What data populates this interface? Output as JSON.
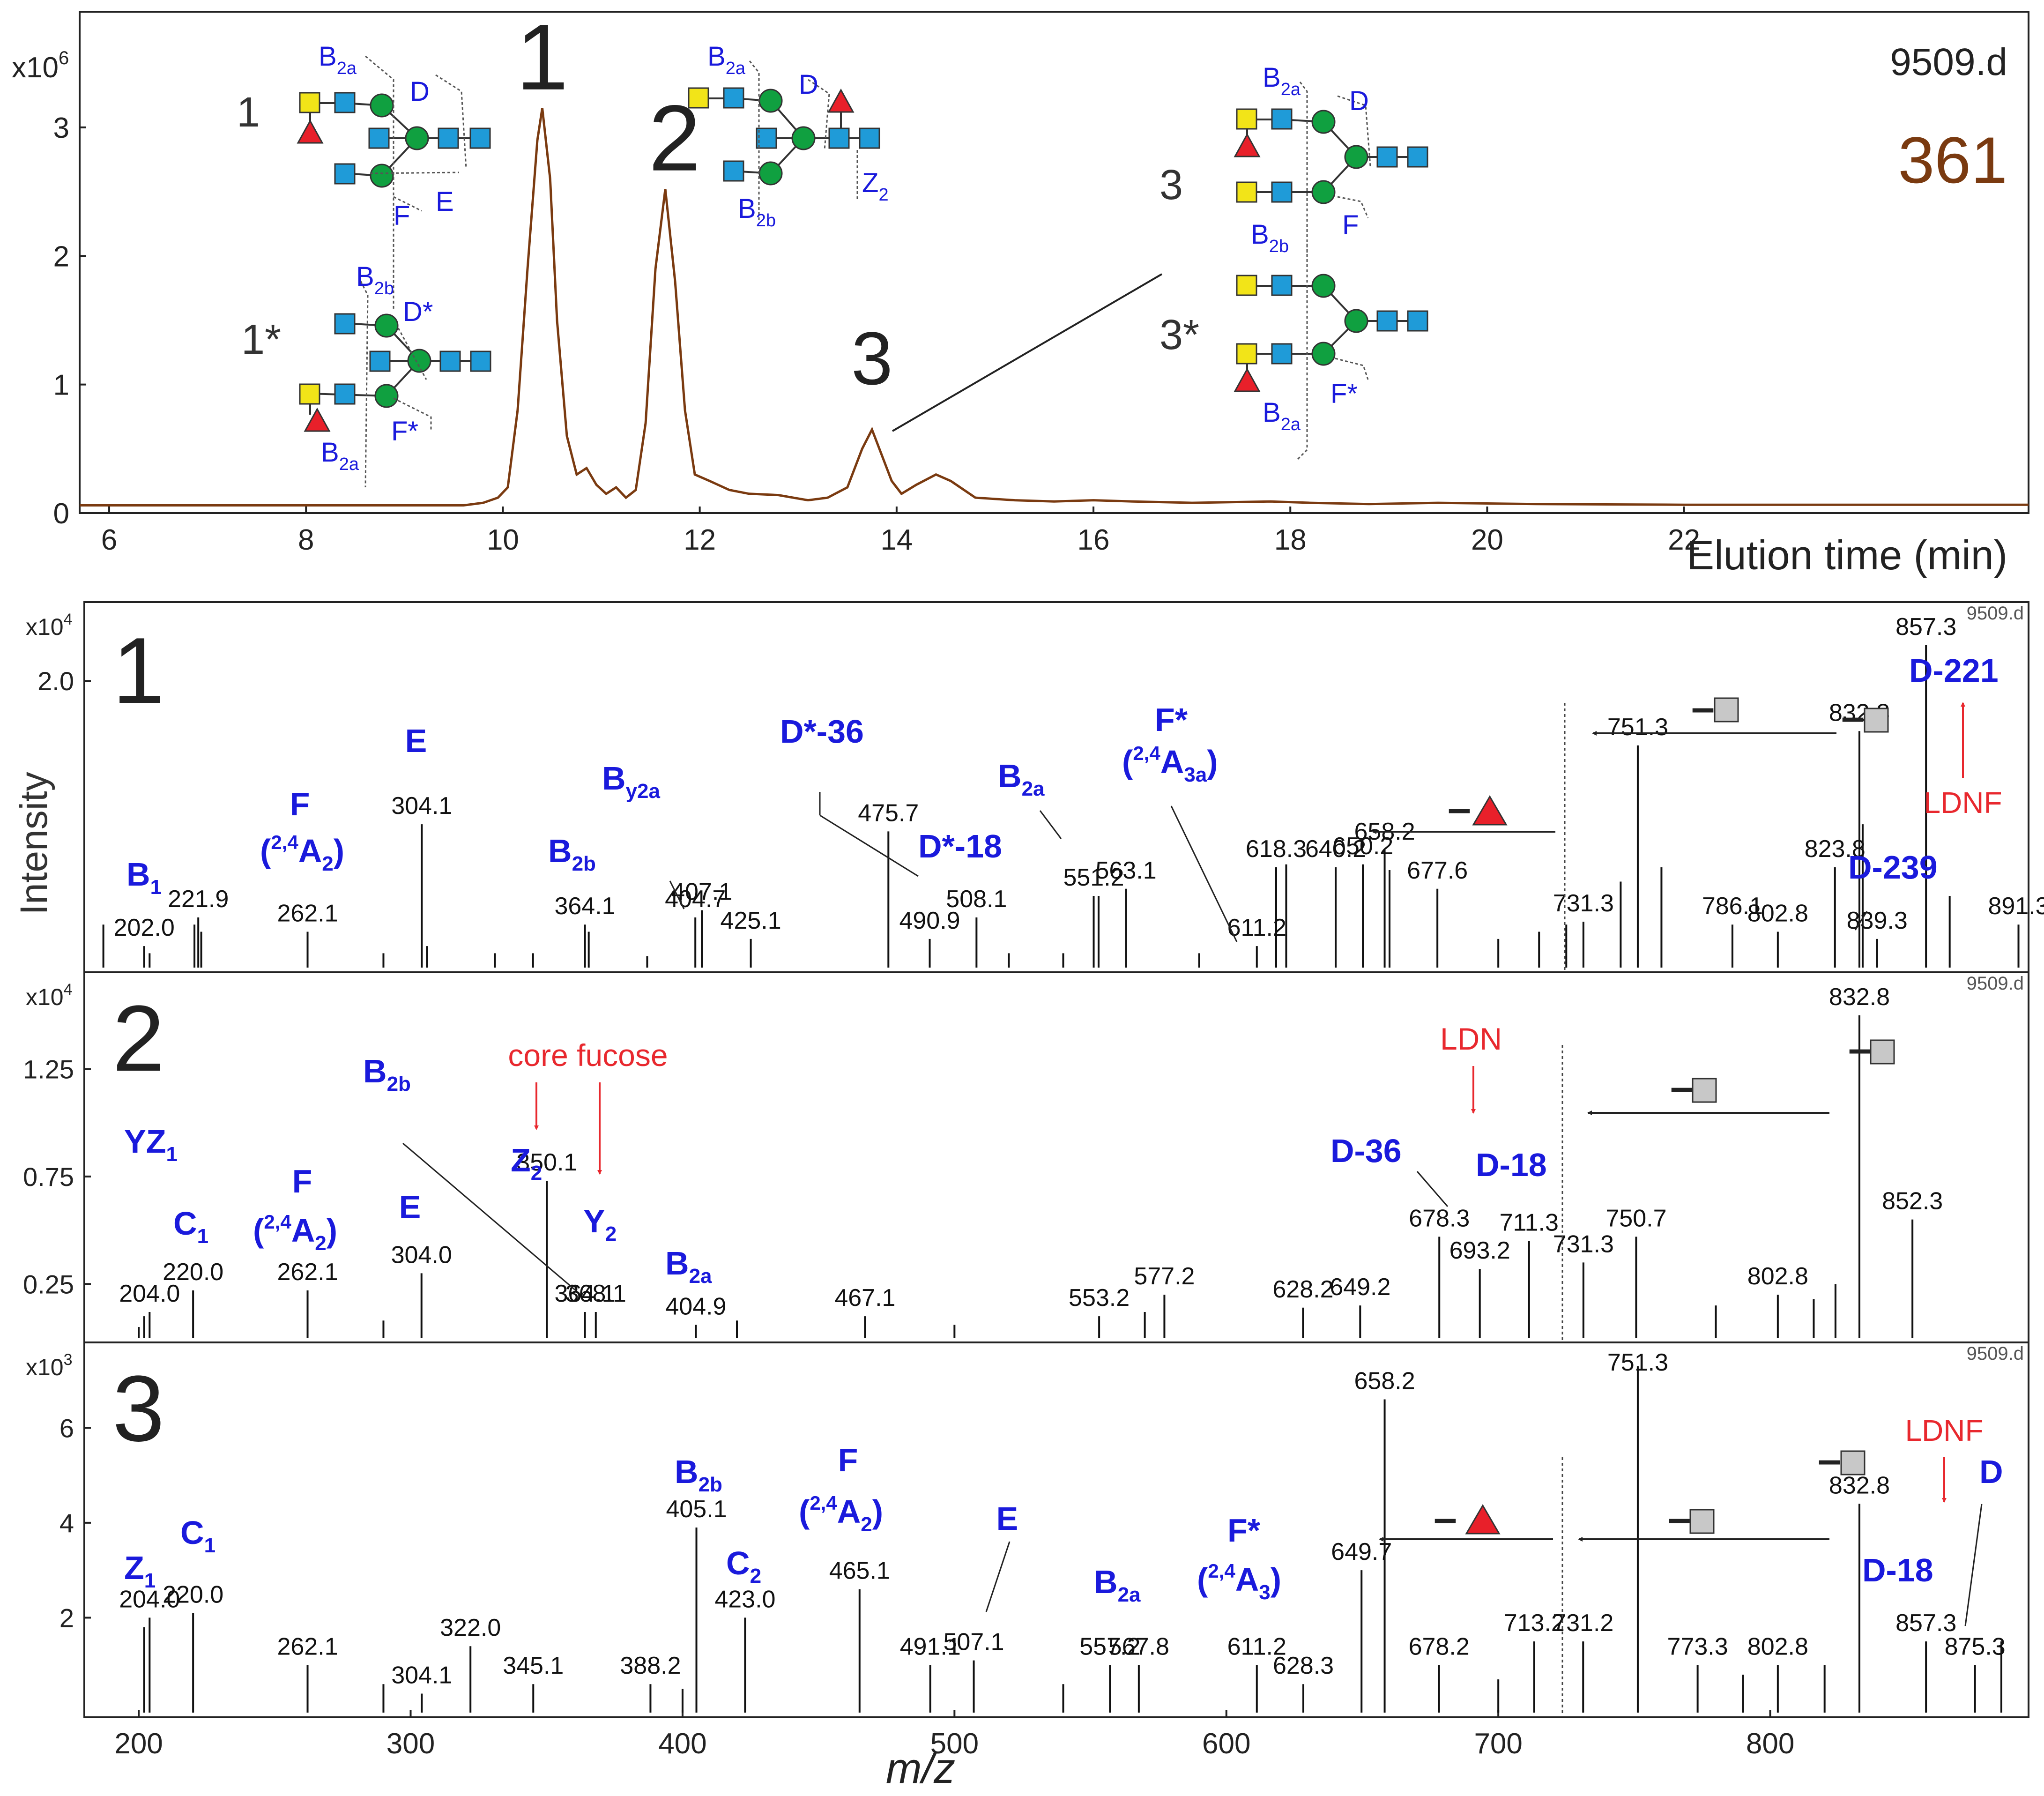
{
  "chart_data": [
    {
      "type": "line",
      "panel": "chromatogram",
      "file_label": "9509.d",
      "mass_label": "361",
      "xlabel": "Elution time (min)",
      "ylabel": "",
      "y_exponent": "x10",
      "y_exponent_power": "6",
      "xlim": [
        5.7,
        25.5
      ],
      "ylim": [
        0,
        3.9
      ],
      "x_ticks": [
        6,
        8,
        10,
        12,
        14,
        16,
        18,
        20,
        22
      ],
      "y_ticks": [
        0,
        1,
        2,
        3
      ],
      "peaks": [
        {
          "label": "1",
          "time": 10.4,
          "height": 3.15
        },
        {
          "label": "2",
          "time": 11.65,
          "height": 2.52
        },
        {
          "label": "3",
          "time": 13.75,
          "height": 0.65
        }
      ],
      "trace": [
        [
          5.7,
          0.06
        ],
        [
          9.6,
          0.06
        ],
        [
          9.8,
          0.08
        ],
        [
          9.95,
          0.12
        ],
        [
          10.05,
          0.2
        ],
        [
          10.15,
          0.8
        ],
        [
          10.25,
          1.9
        ],
        [
          10.35,
          2.9
        ],
        [
          10.4,
          3.15
        ],
        [
          10.48,
          2.6
        ],
        [
          10.55,
          1.5
        ],
        [
          10.65,
          0.6
        ],
        [
          10.75,
          0.3
        ],
        [
          10.85,
          0.35
        ],
        [
          10.95,
          0.22
        ],
        [
          11.05,
          0.15
        ],
        [
          11.15,
          0.2
        ],
        [
          11.25,
          0.12
        ],
        [
          11.35,
          0.18
        ],
        [
          11.45,
          0.7
        ],
        [
          11.55,
          1.9
        ],
        [
          11.65,
          2.52
        ],
        [
          11.75,
          1.8
        ],
        [
          11.85,
          0.8
        ],
        [
          11.95,
          0.3
        ],
        [
          12.1,
          0.25
        ],
        [
          12.3,
          0.18
        ],
        [
          12.5,
          0.15
        ],
        [
          12.8,
          0.14
        ],
        [
          13.1,
          0.1
        ],
        [
          13.3,
          0.12
        ],
        [
          13.5,
          0.2
        ],
        [
          13.65,
          0.5
        ],
        [
          13.75,
          0.65
        ],
        [
          13.85,
          0.45
        ],
        [
          13.95,
          0.25
        ],
        [
          14.05,
          0.15
        ],
        [
          14.2,
          0.22
        ],
        [
          14.4,
          0.3
        ],
        [
          14.55,
          0.25
        ],
        [
          14.8,
          0.12
        ],
        [
          15.2,
          0.1
        ],
        [
          15.6,
          0.09
        ],
        [
          16.0,
          0.1
        ],
        [
          16.4,
          0.09
        ],
        [
          17.0,
          0.08
        ],
        [
          17.8,
          0.09
        ],
        [
          18.2,
          0.08
        ],
        [
          18.8,
          0.07
        ],
        [
          19.5,
          0.08
        ],
        [
          20.5,
          0.07
        ],
        [
          22.0,
          0.065
        ],
        [
          25.5,
          0.065
        ]
      ],
      "annotations": {
        "peak_numbers": [
          "1",
          "2",
          "3"
        ],
        "structure_labels": [
          "1",
          "1*",
          "2",
          "3",
          "3*"
        ],
        "fragment_labels": [
          "B",
          "2a",
          "D",
          "F",
          "E",
          "2b",
          "D*",
          "F*",
          "Z",
          "2",
          "F*"
        ]
      }
    },
    {
      "type": "bar",
      "panel": "MS/MS spectrum 1",
      "panel_number": "1",
      "file_label": "9509.d",
      "y_exponent": "x10",
      "y_exponent_power": "4",
      "ylabel": "Intensity",
      "xlim": [
        180,
        895
      ],
      "ylim": [
        0,
        2.55
      ],
      "y_ticks": [
        "2.0"
      ],
      "x": [
        187,
        202.0,
        204,
        220.5,
        221.9,
        223,
        262.1,
        290,
        304.1,
        306,
        331,
        345,
        364.1,
        365.5,
        387,
        404.7,
        407.1,
        425.1,
        475.7,
        490.9,
        508.1,
        520,
        540,
        551.2,
        553,
        563.1,
        590,
        611.2,
        618.3,
        622,
        640.2,
        650.2,
        658.2,
        660,
        677.6,
        700,
        715,
        725,
        731.3,
        745,
        751.3,
        760,
        786.1,
        802.8,
        823.8,
        832.8,
        834,
        839.3,
        857.3,
        866,
        891.3
      ],
      "values": [
        0.3,
        0.15,
        0.1,
        0.3,
        0.35,
        0.25,
        0.25,
        0.1,
        1.0,
        0.15,
        0.1,
        0.1,
        0.3,
        0.25,
        0.08,
        0.35,
        0.4,
        0.2,
        0.95,
        0.2,
        0.35,
        0.1,
        0.1,
        0.5,
        0.5,
        0.55,
        0.1,
        0.15,
        0.7,
        0.72,
        0.7,
        0.72,
        0.82,
        0.68,
        0.55,
        0.2,
        0.25,
        0.3,
        0.32,
        0.6,
        1.55,
        0.7,
        0.3,
        0.25,
        0.7,
        1.65,
        1.0,
        0.2,
        2.25,
        0.5,
        0.3
      ],
      "peak_labels": [
        "221.9",
        "202.0",
        "262.1",
        "304.1",
        "364.1",
        "404.7",
        "407.1",
        "425.1",
        "475.7",
        "490.9",
        "508.1",
        "551.2",
        "563.1",
        "611.2",
        "618.3",
        "640.2",
        "650.2",
        "658.2",
        "677.6",
        "731.3",
        "751.3",
        "786.1",
        "802.8",
        "823.8",
        "832.8",
        "839.3",
        "857.3",
        "891.3"
      ],
      "annotations": {
        "ions": [
          "B",
          "1",
          "F",
          "(",
          "2,4",
          "A",
          "2",
          ")",
          "E",
          "B",
          "y2a",
          "B",
          "2b",
          "D*-36",
          "D*-18",
          "B",
          "2a",
          "F*",
          "(",
          "2,4",
          "A",
          "3a",
          ")",
          "D-221",
          "D-239",
          "LDNF"
        ],
        "losses": [
          "–",
          "–",
          "–"
        ]
      }
    },
    {
      "type": "bar",
      "panel": "MS/MS spectrum 2",
      "panel_number": "2",
      "file_label": "9509.d",
      "y_exponent": "x10",
      "y_exponent_power": "4",
      "xlim": [
        180,
        895
      ],
      "ylim": [
        0,
        1.7
      ],
      "y_ticks": [
        "0.25",
        "0.75",
        "1.25"
      ],
      "x": [
        200,
        202,
        204.0,
        220.0,
        262.1,
        290,
        304.0,
        350.1,
        364.1,
        368.1,
        404.9,
        420,
        467.1,
        500,
        553.2,
        570,
        577.2,
        628.2,
        649.2,
        678.3,
        693.2,
        711.3,
        731.3,
        750.7,
        780,
        802.8,
        816,
        824,
        832.8,
        852.3
      ],
      "values": [
        0.05,
        0.1,
        0.12,
        0.22,
        0.22,
        0.08,
        0.3,
        0.73,
        0.12,
        0.12,
        0.06,
        0.08,
        0.1,
        0.06,
        0.1,
        0.12,
        0.2,
        0.14,
        0.15,
        0.47,
        0.32,
        0.45,
        0.35,
        0.47,
        0.15,
        0.2,
        0.18,
        0.25,
        1.5,
        0.55
      ],
      "peak_labels": [
        "204.0",
        "220.0",
        "262.1",
        "304.0",
        "350.1",
        "364.1",
        "368.1",
        "404.9",
        "467.1",
        "553.2",
        "577.2",
        "628.2",
        "649.2",
        "678.3",
        "693.2",
        "711.3",
        "731.3",
        "750.7",
        "802.8",
        "832.8",
        "852.3"
      ],
      "annotations": {
        "ions": [
          "YZ",
          "1",
          "C",
          "1",
          "F",
          "(",
          "2,4",
          "A",
          "2",
          ")",
          "E",
          "B",
          "2b",
          "Z",
          "2",
          "Y",
          "2",
          "B",
          "2a",
          "D-36",
          "D-18"
        ],
        "marks": [
          "core fucose",
          "LDN"
        ],
        "losses": [
          "–",
          "–"
        ]
      }
    },
    {
      "type": "bar",
      "panel": "MS/MS spectrum 3",
      "panel_number": "3",
      "file_label": "9509.d",
      "y_exponent": "x10",
      "y_exponent_power": "3",
      "xlabel": "m/z",
      "xlim": [
        180,
        895
      ],
      "ylim": [
        0,
        7.8
      ],
      "x_ticks": [
        200,
        300,
        400,
        500,
        600,
        700,
        800
      ],
      "y_ticks": [
        "2",
        "4",
        "6"
      ],
      "x": [
        202,
        204.0,
        220.0,
        262.1,
        290,
        304.1,
        322.0,
        345.1,
        388.2,
        400,
        405.1,
        423.0,
        465.1,
        491.1,
        507.1,
        540,
        557.2,
        567.8,
        611.2,
        628.3,
        649.7,
        658.2,
        678.2,
        700,
        713.2,
        731.2,
        751.3,
        773.3,
        790,
        802.8,
        820,
        832.8,
        857.3,
        875.3,
        885
      ],
      "values": [
        1.8,
        2.0,
        2.1,
        1.0,
        0.6,
        0.4,
        1.4,
        0.6,
        0.6,
        0.5,
        3.9,
        2.0,
        2.6,
        1.0,
        1.1,
        0.6,
        1.0,
        1.0,
        1.0,
        0.6,
        3.0,
        6.6,
        1.0,
        0.7,
        1.5,
        1.5,
        7.3,
        1.0,
        0.8,
        1.0,
        1.0,
        4.4,
        1.5,
        1.0,
        1.5
      ],
      "peak_labels": [
        "204.0",
        "220.0",
        "262.1",
        "304.1",
        "322.0",
        "345.1",
        "388.2",
        "405.1",
        "423.0",
        "465.1",
        "491.1",
        "507.1",
        "557.2",
        "567.8",
        "611.2",
        "628.3",
        "649.7",
        "658.2",
        "678.2",
        "713.2",
        "731.2",
        "751.3",
        "773.3",
        "802.8",
        "832.8",
        "857.3",
        "875.3"
      ],
      "annotations": {
        "ions": [
          "Z",
          "1",
          "C",
          "1",
          "B",
          "2b",
          "C",
          "2",
          "F",
          "(",
          "2,4",
          "A",
          "2",
          ")",
          "E",
          "B",
          "2a",
          "F*",
          "(",
          "2,4",
          "A",
          "3",
          ")",
          "D",
          "D-18"
        ],
        "marks": [
          "LDNF"
        ],
        "losses": [
          "–",
          "–",
          "–"
        ]
      }
    }
  ],
  "colors": {
    "trace": "#7a3a10",
    "ion_label": "#1a1adc",
    "highlight": "#e8282e",
    "glcnac": "#1f9bd8",
    "mannose": "#10a040",
    "galnac": "#f2e418",
    "fucose": "#e8202a",
    "loss_square": "#c8c8c8"
  }
}
